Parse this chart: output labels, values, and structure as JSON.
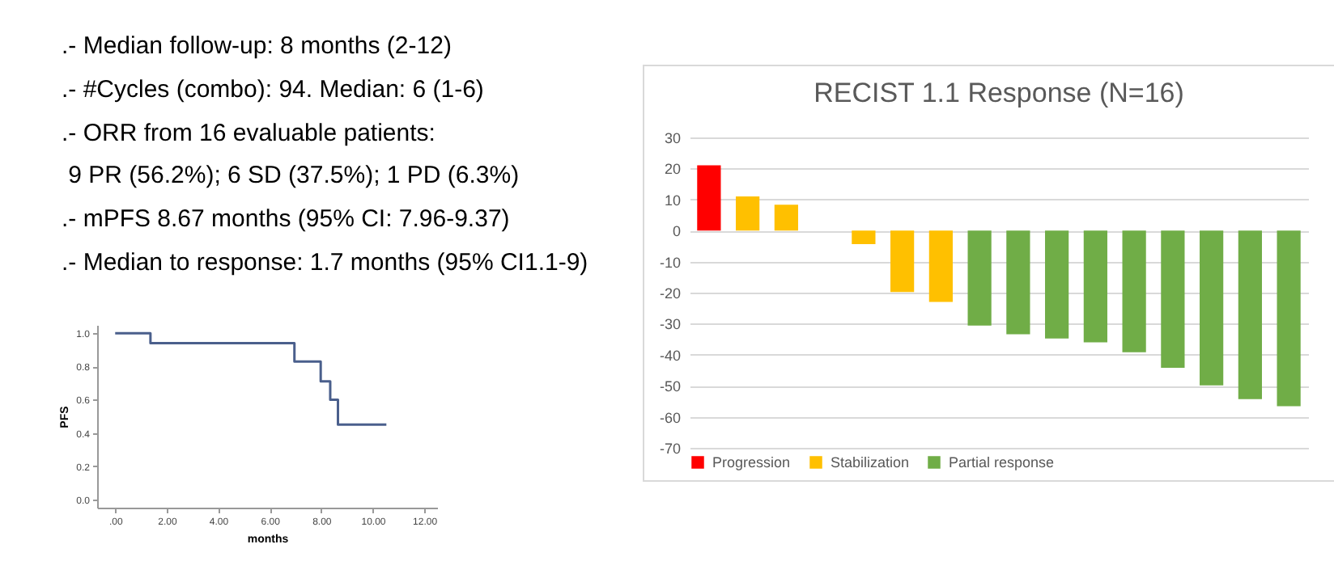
{
  "chart_data": [
    {
      "type": "other",
      "annotations": [
        ".- Median follow-up: 8 months (2-12)",
        ".- #Cycles (combo): 94. Median: 6 (1-6)",
        ".- ORR from 16 evaluable patients:",
        " 9 PR (56.2%); 6 SD (37.5%); 1 PD (6.3%)",
        ".- mPFS 8.67 months (95% CI: 7.96-9.37)",
        ".- Median to response: 1.7 months (95% CI1.1-9)"
      ]
    },
    {
      "type": "step",
      "xlabel": "months",
      "ylabel": "PFS",
      "x": [
        0,
        1.37,
        6.96,
        7.98,
        8.35,
        8.65,
        10.53
      ],
      "series": [
        {
          "color": "#4a5f8c",
          "values": [
            1,
            0.94,
            0.83,
            0.71,
            0.6,
            0.45,
            0.45
          ]
        }
      ],
      "xlim": [
        -0.7,
        12.5
      ],
      "xticks": [
        {
          "value": 0,
          "label": ".00"
        },
        {
          "value": 2,
          "label": "2.00"
        },
        {
          "value": 4,
          "label": "4.00"
        },
        {
          "value": 6,
          "label": "6.00"
        },
        {
          "value": 8,
          "label": "8.00"
        },
        {
          "value": 10,
          "label": "10.00"
        },
        {
          "value": 12,
          "label": "12.00"
        }
      ],
      "ylim": [
        -0.05,
        1.05
      ],
      "yticks": [
        {
          "value": 0,
          "label": "0.0"
        },
        {
          "value": 0.2,
          "label": "0.2"
        },
        {
          "value": 0.4,
          "label": "0.4"
        },
        {
          "value": 0.6,
          "label": "0.6"
        },
        {
          "value": 0.8,
          "label": "0.8"
        },
        {
          "value": 1,
          "label": "1.0"
        }
      ],
      "grid": false
    },
    {
      "type": "bar",
      "title": "RECIST 1.1 Response (N=16)",
      "categories": [
        null,
        null,
        null,
        null,
        null,
        null,
        null,
        null,
        null,
        null,
        null,
        null,
        null,
        null,
        null,
        null
      ],
      "series": [
        {
          "name": "Progression",
          "color": "#ff0000",
          "values": [
            21,
            null,
            null,
            null,
            null,
            null,
            null,
            null,
            null,
            null,
            null,
            null,
            null,
            null,
            null,
            null
          ]
        },
        {
          "name": "Stabilization",
          "color": "#ffc000",
          "values": [
            null,
            11,
            8.3,
            null,
            -4.4,
            -19.8,
            -23,
            null,
            null,
            null,
            null,
            null,
            null,
            null,
            null,
            null
          ]
        },
        {
          "name": "Partial response",
          "color": "#70ad47",
          "values": [
            null,
            null,
            null,
            null,
            null,
            null,
            null,
            -30.6,
            -33.4,
            -34.8,
            -36,
            -39.2,
            -44.2,
            -49.9,
            -54.3,
            -56.6
          ]
        }
      ],
      "ylim": [
        -70,
        30
      ],
      "yticks": [
        -70,
        -60,
        -50,
        -40,
        -30,
        -20,
        -10,
        0,
        10,
        20,
        30
      ],
      "grid": "y",
      "legend": "bottom"
    }
  ]
}
